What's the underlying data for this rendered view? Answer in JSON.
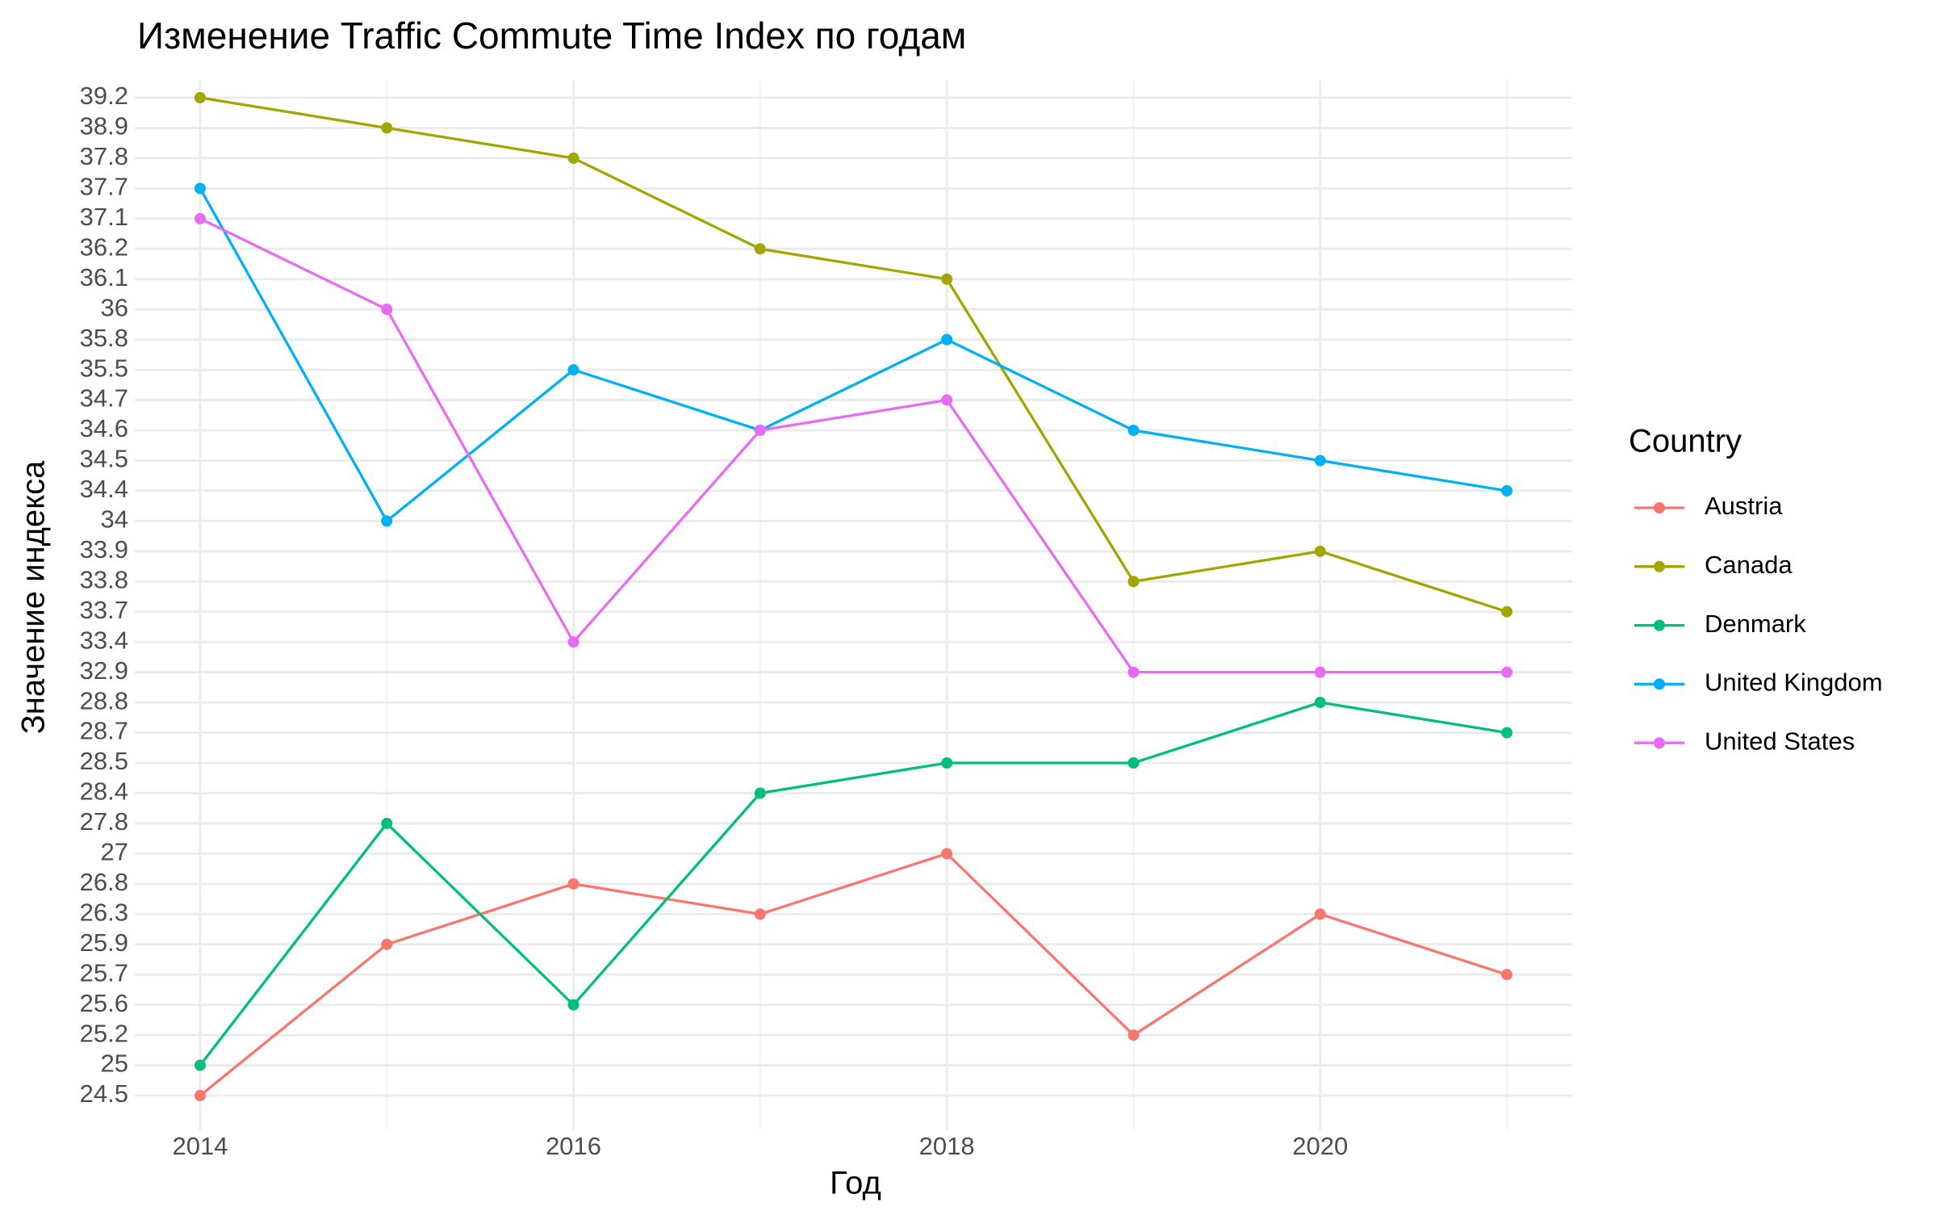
{
  "chart_data": {
    "type": "line",
    "title": "Изменение Traffic Commute Time Index по годам",
    "x_label": "Год",
    "y_label": "Значение индекса",
    "legend_title": "Country",
    "legend_position": "right",
    "x": [
      2014,
      2015,
      2016,
      2017,
      2018,
      2019,
      2020,
      2021
    ],
    "xlim": [
      2013.65,
      2021.35
    ],
    "xticks": [
      2014,
      2016,
      2018,
      2020
    ],
    "y_scale": "discrete",
    "yticks": [
      24.5,
      25,
      25.2,
      25.6,
      25.7,
      25.9,
      26.3,
      26.8,
      27,
      27.8,
      28.4,
      28.5,
      28.7,
      28.8,
      32.9,
      33.4,
      33.7,
      33.8,
      33.9,
      34,
      34.4,
      34.5,
      34.6,
      34.7,
      35.5,
      35.8,
      36,
      36.1,
      36.2,
      37.1,
      37.7,
      37.8,
      38.9,
      39.2
    ],
    "grid": true,
    "series": [
      {
        "name": "Austria",
        "color": "#F8766D",
        "values": [
          24.5,
          25.9,
          26.8,
          26.3,
          27,
          25.2,
          26.3,
          25.7
        ]
      },
      {
        "name": "Canada",
        "color": "#A3A500",
        "values": [
          39.2,
          38.9,
          37.8,
          36.2,
          36.1,
          33.8,
          33.9,
          33.7
        ]
      },
      {
        "name": "Denmark",
        "color": "#00BF7D",
        "values": [
          25,
          27.8,
          25.6,
          28.4,
          28.5,
          28.5,
          28.8,
          28.7
        ]
      },
      {
        "name": "United Kingdom",
        "color": "#00B0F6",
        "values": [
          37.7,
          34,
          35.5,
          34.6,
          35.8,
          34.6,
          34.5,
          34.4
        ]
      },
      {
        "name": "United States",
        "color": "#E76BF3",
        "values": [
          37.1,
          36,
          33.4,
          34.6,
          34.7,
          32.9,
          32.9,
          32.9
        ]
      }
    ]
  }
}
